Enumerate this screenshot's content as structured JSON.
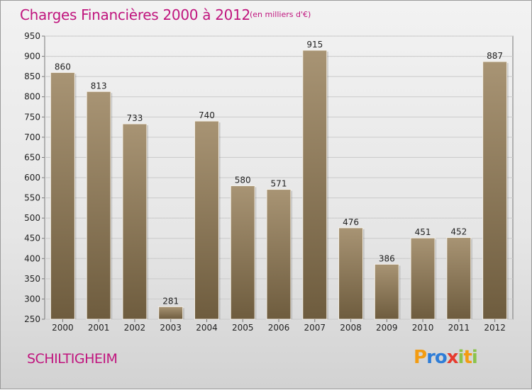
{
  "header": {
    "title": "Charges Financières 2000 à 2012",
    "subtitle": "(en milliers d'€)"
  },
  "footer": {
    "city": "SCHILTIGHEIM",
    "logo": {
      "letters": [
        "P",
        "r",
        "o",
        "x",
        "i",
        "t",
        "i"
      ],
      "colors": [
        "#f39c12",
        "#2e7dd7",
        "#2e7dd7",
        "#e63b2e",
        "#8bc34a",
        "#f39c12",
        "#8bc34a"
      ]
    }
  },
  "chart_data": {
    "type": "bar",
    "categories": [
      "2000",
      "2001",
      "2002",
      "2003",
      "2004",
      "2005",
      "2006",
      "2007",
      "2008",
      "2009",
      "2010",
      "2011",
      "2012"
    ],
    "values": [
      860,
      813,
      733,
      281,
      740,
      580,
      571,
      915,
      476,
      386,
      451,
      452,
      887
    ],
    "data_labels": [
      "860",
      "813",
      "733",
      "281",
      "740",
      "580",
      "571",
      "915",
      "476",
      "386",
      "451",
      "452",
      "887"
    ],
    "ylim": [
      250,
      950
    ],
    "yticks": [
      "250",
      "300",
      "350",
      "400",
      "450",
      "500",
      "550",
      "600",
      "650",
      "700",
      "750",
      "800",
      "850",
      "900",
      "950"
    ],
    "grid": true,
    "bar_color_top": "#a89474",
    "bar_color_bottom": "#6e5c3e",
    "title": "Charges Financières 2000 à 2012"
  }
}
